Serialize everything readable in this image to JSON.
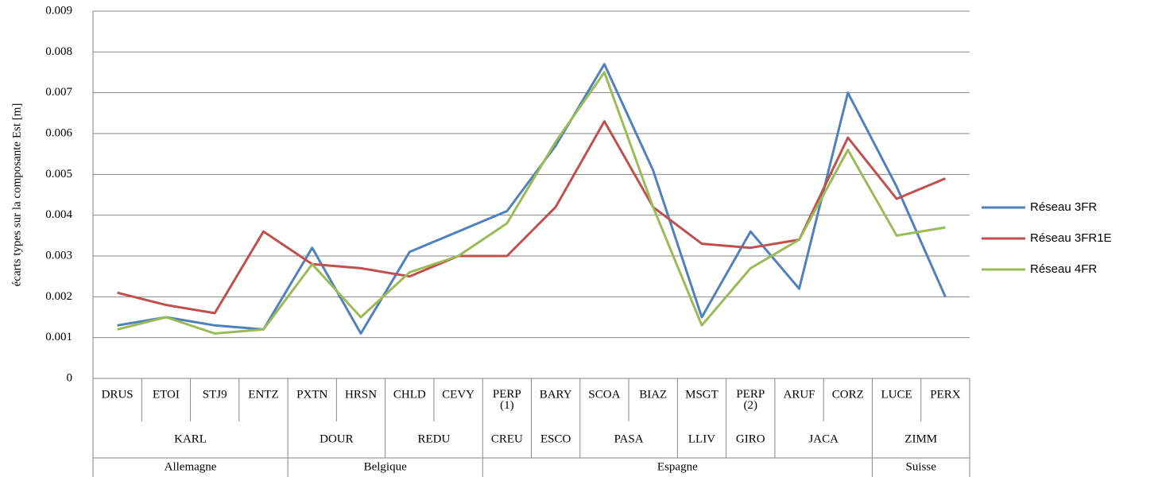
{
  "chart_data": {
    "type": "line",
    "y_axis_label": "écarts types sur la composante Est [m]",
    "categories": [
      "DRUS",
      "ETOI",
      "STJ9",
      "ENTZ",
      "PXTN",
      "HRSN",
      "CHLD",
      "CEVY",
      "PERP (1)",
      "BARY",
      "SCOA",
      "BIAZ",
      "MSGT",
      "PERP (2)",
      "ARUF",
      "CORZ",
      "LUCE",
      "PERX"
    ],
    "category_groups": [
      [
        "KARL",
        null,
        null,
        null,
        "DOUR",
        null,
        "REDU",
        null,
        "CREU",
        "ESCO",
        "PASA",
        null,
        "LLIV",
        "GIRO",
        "JACA",
        null,
        "ZIMM",
        null
      ],
      [
        "Allemagne",
        null,
        null,
        null,
        "Belgique",
        null,
        null,
        null,
        "Espagne",
        null,
        null,
        null,
        null,
        null,
        null,
        null,
        "Suisse",
        null
      ]
    ],
    "series": [
      {
        "name": "Réseau 3FR",
        "color": "#4f81bd",
        "values": [
          0.0013,
          0.0015,
          0.0013,
          0.0012,
          0.0032,
          0.0011,
          0.0031,
          0.0036,
          0.0041,
          0.0057,
          0.0077,
          0.0051,
          0.0015,
          0.0036,
          0.0022,
          0.007,
          0.0047,
          0.002
        ]
      },
      {
        "name": "Réseau 3FR1E",
        "color": "#c0504d",
        "values": [
          0.0021,
          0.0018,
          0.0016,
          0.0036,
          0.0028,
          0.0027,
          0.0025,
          0.003,
          0.003,
          0.0042,
          0.0063,
          0.0042,
          0.0033,
          0.0032,
          0.0034,
          0.0059,
          0.0044,
          0.0049
        ]
      },
      {
        "name": "Réseau 4FR",
        "color": "#9bbb59",
        "values": [
          0.0012,
          0.0015,
          0.0011,
          0.0012,
          0.0028,
          0.0015,
          0.0026,
          0.003,
          0.0038,
          0.0058,
          0.0075,
          0.0042,
          0.0013,
          0.0027,
          0.0034,
          0.0056,
          0.0035,
          0.0037
        ]
      }
    ],
    "ylim": [
      0,
      0.009
    ],
    "yticks": [
      0,
      0.001,
      0.002,
      0.003,
      0.004,
      0.005,
      0.006,
      0.007,
      0.008,
      0.009
    ],
    "grid": true,
    "legend": "right"
  }
}
